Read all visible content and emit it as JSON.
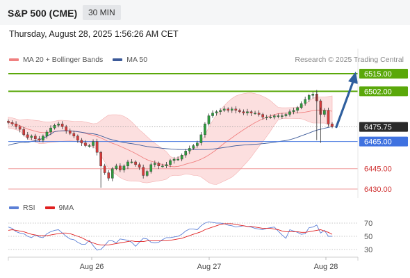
{
  "header": {
    "title": "S&P 500 (CME)",
    "timeframe": "30 MIN"
  },
  "datetime": "Thursday, August 28, 2025 1:56:26 AM CET",
  "legend_main": [
    {
      "label": "MA 20 + Bollinger Bands",
      "color": "#f08080"
    },
    {
      "label": "MA 50",
      "color": "#3c5a99"
    }
  ],
  "legend_rsi": [
    {
      "label": "RSI",
      "color": "#5b7fd6"
    },
    {
      "label": "9MA",
      "color": "#e02020"
    }
  ],
  "research": "Research © 2025 Trading Central",
  "colors": {
    "green": "#5aa80a",
    "blue": "#4a7ae0",
    "red": "#ef9a9a",
    "arrow": "#2f5f9e",
    "current": "#333333"
  },
  "chart_data": {
    "type": "candlestick",
    "ylim": [
      6422,
      6522
    ],
    "levels": [
      {
        "value": 6515.0,
        "label": "6515.00",
        "kind": "resistance"
      },
      {
        "value": 6502.0,
        "label": "6502.00",
        "kind": "resistance"
      },
      {
        "value": 6475.75,
        "label": "6475.75",
        "kind": "current"
      },
      {
        "value": 6465.0,
        "label": "6465.00",
        "kind": "pivot"
      },
      {
        "value": 6445.0,
        "label": "6445.00",
        "kind": "support"
      },
      {
        "value": 6430.0,
        "label": "6430.00",
        "kind": "support"
      }
    ],
    "xlabels": [
      "Aug 26",
      "Aug 27",
      "Aug 28"
    ],
    "price": [
      6479,
      6478,
      6476,
      6474,
      6470,
      6468,
      6469,
      6467,
      6466,
      6469,
      6472,
      6475,
      6477,
      6478,
      6476,
      6473,
      6471,
      6469,
      6466,
      6464,
      6462,
      6462,
      6465,
      6457,
      6447,
      6442,
      6438,
      6445,
      6447,
      6444,
      6447,
      6450,
      6450,
      6448,
      6446,
      6440,
      6443,
      6448,
      6449,
      6447,
      6447,
      6448,
      6451,
      6452,
      6452,
      6455,
      6458,
      6460,
      6462,
      6464,
      6470,
      6478,
      6484,
      6486,
      6487,
      6488,
      6489,
      6488,
      6489,
      6488,
      6487,
      6486,
      6487,
      6486,
      6486,
      6485,
      6483,
      6483,
      6483,
      6484,
      6484,
      6484,
      6485,
      6487,
      6488,
      6490,
      6493,
      6496,
      6499,
      6500,
      6495,
      6485,
      6488,
      6478,
      6476
    ],
    "rsi": {
      "ylim": [
        20,
        80
      ],
      "ticks": [
        "70",
        "50",
        "30"
      ],
      "values": [
        64,
        62,
        57,
        55,
        54,
        50,
        48,
        52,
        49,
        48,
        54,
        57,
        59,
        60,
        55,
        50,
        46,
        45,
        41,
        38,
        38,
        44,
        36,
        29,
        30,
        36,
        43,
        43,
        40,
        46,
        45,
        44,
        41,
        35,
        41,
        47,
        46,
        41,
        40,
        41,
        45,
        48,
        48,
        49,
        50,
        53,
        58,
        61,
        61,
        60,
        66,
        70,
        72,
        71,
        70,
        70,
        69,
        67,
        66,
        64,
        65,
        66,
        65,
        64,
        62,
        61,
        60,
        62,
        63,
        64,
        58,
        52,
        47,
        60,
        58,
        56,
        53,
        54,
        63,
        64,
        67,
        55,
        59,
        50,
        50
      ],
      "ma9": [
        59,
        60,
        59,
        58,
        57,
        55,
        53,
        52,
        51,
        51,
        51,
        52,
        53,
        54,
        55,
        55,
        54,
        52,
        50,
        48,
        45,
        42,
        40,
        38,
        37,
        37,
        37,
        38,
        39,
        40,
        41,
        42,
        43,
        42,
        42,
        42,
        43,
        43,
        43,
        43,
        43,
        43,
        44,
        45,
        46,
        47,
        49,
        51,
        53,
        55,
        57,
        60,
        62,
        64,
        66,
        68,
        69,
        69,
        69,
        68,
        67,
        66,
        65,
        65,
        64,
        63,
        62,
        62,
        62,
        61,
        60,
        58,
        57,
        57,
        57,
        57,
        56,
        56,
        57,
        58,
        59,
        60,
        58,
        56,
        53
      ]
    }
  }
}
